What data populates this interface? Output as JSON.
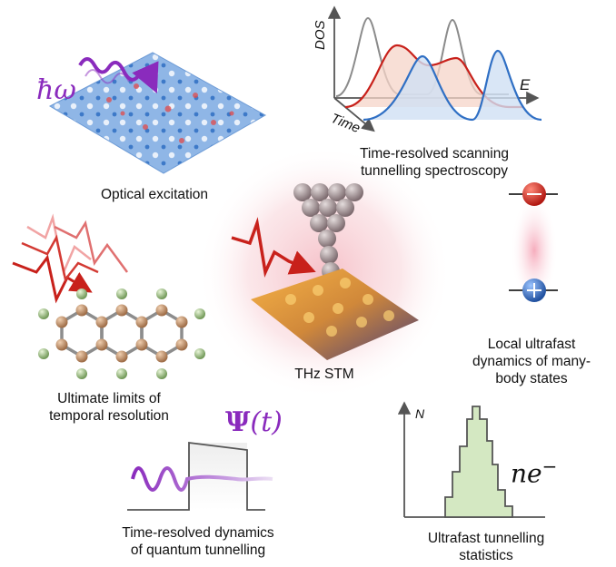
{
  "panels": {
    "optical": {
      "symbol": "ħω",
      "caption": "Optical excitation"
    },
    "trsts": {
      "axis_dos": "DOS",
      "axis_time": "Time",
      "axis_e": "E",
      "caption_line1": "Time-resolved scanning",
      "caption_line2": "tunnelling spectroscopy"
    },
    "center": {
      "caption": "THz STM"
    },
    "manybody": {
      "caption_line1": "Local ultrafast",
      "caption_line2": "dynamics of many-",
      "caption_line3": "body states"
    },
    "temporal": {
      "caption_line1": "Ultimate limits of",
      "caption_line2": "temporal resolution"
    },
    "quantum": {
      "formula_psi": "Ψ",
      "formula_rest": "(t)",
      "caption_line1": "Time-resolved dynamics",
      "caption_line2": "of quantum tunnelling"
    },
    "statistics": {
      "axis_n": "N",
      "label": "ne",
      "label_sup": "−",
      "caption_line1": "Ultrafast tunnelling",
      "caption_line2": "statistics"
    }
  },
  "colors": {
    "red": "#c8211b",
    "blue": "#2f6fc4",
    "purple": "#8a2bbd",
    "green_fill": "#d4e8c2"
  }
}
